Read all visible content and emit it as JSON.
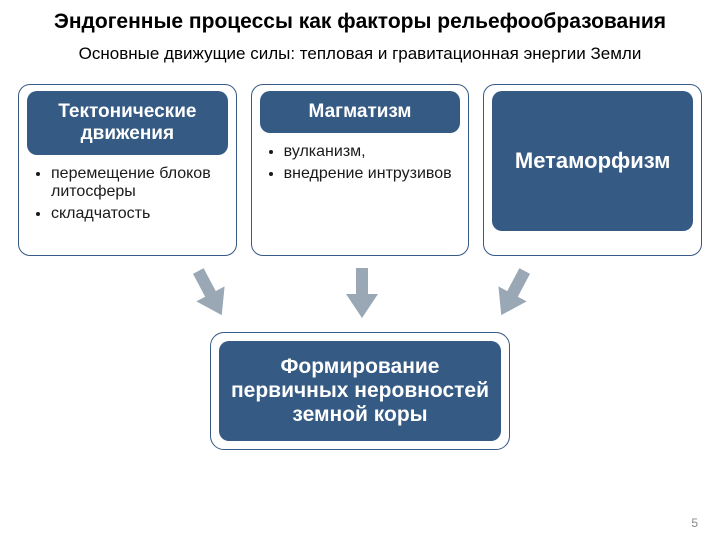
{
  "title": {
    "text": "Эндогенные процессы как факторы рельефообразования",
    "fontsize": 21
  },
  "subtitle": {
    "text": "Основные движущие силы: тепловая и гравитационная энергии Земли",
    "fontsize": 17
  },
  "colors": {
    "card_fill": "#355a84",
    "card_border": "#355a84",
    "arrow_fill": "#9aa7b5",
    "text_body": "#1a1a1a",
    "page_bg": "#ffffff"
  },
  "cards": [
    {
      "header": "Тектонические движения",
      "header_fontsize": 19,
      "bullets": [
        "перемещение блоков литосферы",
        "складчатость"
      ],
      "bullet_fontsize": 16
    },
    {
      "header": "Магматизм",
      "header_fontsize": 19,
      "bullets": [
        "вулканизм,",
        "внедрение интрузивов"
      ],
      "bullet_fontsize": 16
    },
    {
      "header": "Метаморфизм",
      "header_fontsize": 22,
      "bullets": [],
      "bullet_fontsize": 16
    }
  ],
  "arrows": {
    "count": 3,
    "positions_pct": [
      27,
      48,
      69
    ],
    "rotations_deg": [
      -28,
      0,
      28
    ],
    "color": "#9aa7b5"
  },
  "result": {
    "text": "Формирование первичных неровностей земной коры",
    "fontsize": 21,
    "fill": "#355a84",
    "border": "#355a84"
  },
  "page_number": "5"
}
